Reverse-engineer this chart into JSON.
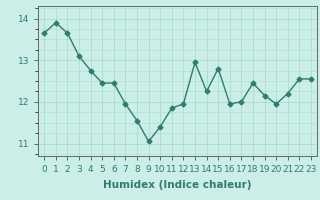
{
  "x": [
    0,
    1,
    2,
    3,
    4,
    5,
    6,
    7,
    8,
    9,
    10,
    11,
    12,
    13,
    14,
    15,
    16,
    17,
    18,
    19,
    20,
    21,
    22,
    23
  ],
  "y": [
    13.65,
    13.9,
    13.65,
    13.1,
    12.75,
    12.45,
    12.45,
    11.95,
    11.55,
    11.05,
    11.4,
    11.85,
    11.95,
    12.95,
    12.25,
    12.8,
    11.95,
    12.0,
    12.45,
    12.15,
    11.95,
    12.2,
    12.55,
    12.55
  ],
  "line_color": "#2e7d6e",
  "marker": "D",
  "marker_size": 2.5,
  "bg_color": "#cceee8",
  "grid_color": "#aaddcc",
  "xlabel": "Humidex (Indice chaleur)",
  "ylim": [
    10.7,
    14.3
  ],
  "xlim": [
    -0.5,
    23.5
  ],
  "yticks": [
    11,
    12,
    13,
    14
  ],
  "xticks": [
    0,
    1,
    2,
    3,
    4,
    5,
    6,
    7,
    8,
    9,
    10,
    11,
    12,
    13,
    14,
    15,
    16,
    17,
    18,
    19,
    20,
    21,
    22,
    23
  ],
  "xlabel_fontsize": 7.5,
  "tick_fontsize": 6.5,
  "line_width": 1.0
}
